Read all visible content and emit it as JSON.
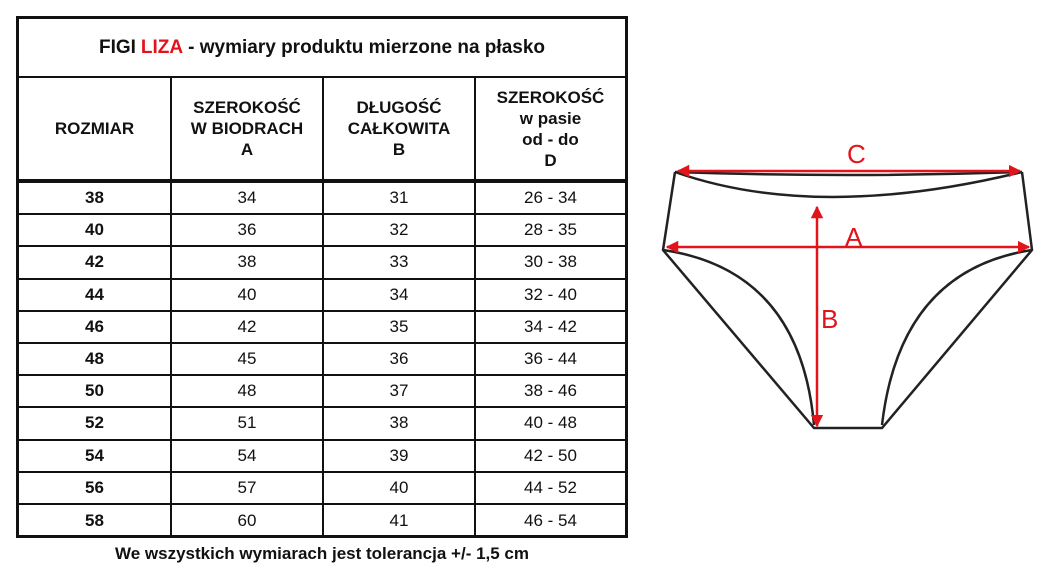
{
  "title": {
    "prefix": "FIGI",
    "product": "LIZA",
    "suffix": "- wymiary produktu mierzone na płasko"
  },
  "headers": [
    "ROZMIAR",
    "SZEROKOŚĆ\nW BIODRACH\nA",
    "DŁUGOŚĆ\nCAŁKOWITA\nB",
    "SZEROKOŚĆ\nw pasie\nod - do\nD"
  ],
  "rows": [
    [
      "38",
      "34",
      "31",
      "26 - 34"
    ],
    [
      "40",
      "36",
      "32",
      "28 - 35"
    ],
    [
      "42",
      "38",
      "33",
      "30 - 38"
    ],
    [
      "44",
      "40",
      "34",
      "32 - 40"
    ],
    [
      "46",
      "42",
      "35",
      "34 - 42"
    ],
    [
      "48",
      "45",
      "36",
      "36 - 44"
    ],
    [
      "50",
      "48",
      "37",
      "38 - 46"
    ],
    [
      "52",
      "51",
      "38",
      "40 - 48"
    ],
    [
      "54",
      "54",
      "39",
      "42 - 50"
    ],
    [
      "56",
      "57",
      "40",
      "44 - 52"
    ],
    [
      "58",
      "60",
      "41",
      "46 - 54"
    ]
  ],
  "footer": "We wszystkich wymiarach jest tolerancja +/- 1,5 cm",
  "diagram": {
    "labels": {
      "c": "C",
      "a": "A",
      "b": "B"
    },
    "arrow_color": "#e3131b"
  },
  "colors": {
    "accent": "#e3131b"
  }
}
